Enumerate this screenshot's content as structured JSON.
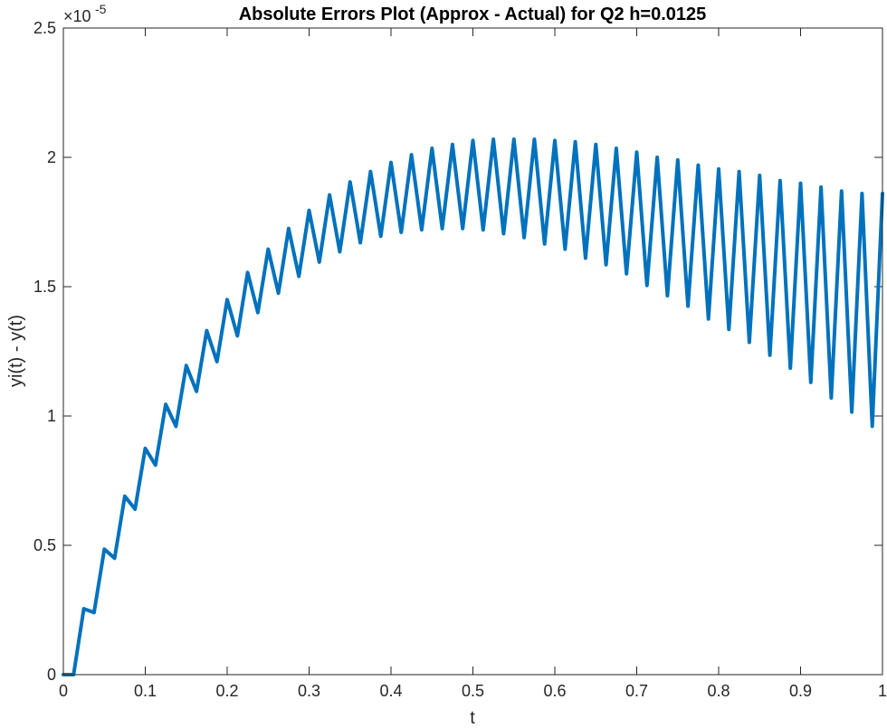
{
  "chart_data": {
    "type": "line",
    "title": "Absolute Errors Plot (Approx - Actual) for Q2 h=0.0125",
    "xlabel": "t",
    "ylabel": "yi(t) - y(t)",
    "xlim": [
      0,
      1
    ],
    "ylim": [
      0,
      2.5e-05
    ],
    "y_exponent_label": "×10",
    "y_exponent_power": "-5",
    "xticks": [
      0,
      0.1,
      0.2,
      0.3,
      0.4,
      0.5,
      0.6,
      0.7,
      0.8,
      0.9,
      1
    ],
    "xtick_labels": [
      "0",
      "0.1",
      "0.2",
      "0.3",
      "0.4",
      "0.5",
      "0.6",
      "0.7",
      "0.8",
      "0.9",
      "1"
    ],
    "yticks": [
      0,
      5e-06,
      1e-05,
      1.5e-05,
      2e-05,
      2.5e-05
    ],
    "ytick_labels": [
      "0",
      "0.5",
      "1",
      "1.5",
      "2",
      "2.5"
    ],
    "grid": false,
    "line_color": "#0072BD",
    "series": [
      {
        "x": [
          0,
          0.0125,
          0.025,
          0.0375,
          0.05,
          0.0625,
          0.075,
          0.0875,
          0.1,
          0.1125,
          0.125,
          0.1375,
          0.15,
          0.1625,
          0.175,
          0.1875,
          0.2,
          0.2125,
          0.225,
          0.2375,
          0.25,
          0.2625,
          0.275,
          0.2875,
          0.3,
          0.3125,
          0.325,
          0.3375,
          0.35,
          0.3625,
          0.375,
          0.3875,
          0.4,
          0.4125,
          0.425,
          0.4375,
          0.45,
          0.4625,
          0.475,
          0.4875,
          0.5,
          0.5125,
          0.525,
          0.5375,
          0.55,
          0.5625,
          0.575,
          0.5875,
          0.6,
          0.6125,
          0.625,
          0.6375,
          0.65,
          0.6625,
          0.675,
          0.6875,
          0.7,
          0.7125,
          0.725,
          0.7375,
          0.75,
          0.7625,
          0.775,
          0.7875,
          0.8,
          0.8125,
          0.825,
          0.8375,
          0.85,
          0.8625,
          0.875,
          0.8875,
          0.9,
          0.9125,
          0.925,
          0.9375,
          0.95,
          0.9625,
          0.975,
          0.9875,
          1
        ],
        "values": [
          0,
          0,
          2.55e-06,
          2.4e-06,
          4.85e-06,
          4.5e-06,
          6.9e-06,
          6.4e-06,
          8.75e-06,
          8.1e-06,
          1.045e-05,
          9.6e-06,
          1.195e-05,
          1.095e-05,
          1.33e-05,
          1.21e-05,
          1.45e-05,
          1.31e-05,
          1.555e-05,
          1.4e-05,
          1.645e-05,
          1.475e-05,
          1.725e-05,
          1.54e-05,
          1.795e-05,
          1.595e-05,
          1.855e-05,
          1.635e-05,
          1.905e-05,
          1.67e-05,
          1.945e-05,
          1.695e-05,
          1.98e-05,
          1.71e-05,
          2.01e-05,
          1.72e-05,
          2.035e-05,
          1.725e-05,
          2.05e-05,
          1.725e-05,
          2.065e-05,
          1.72e-05,
          2.07e-05,
          1.705e-05,
          2.07e-05,
          1.69e-05,
          2.07e-05,
          1.665e-05,
          2.065e-05,
          1.645e-05,
          2.06e-05,
          1.61e-05,
          2.05e-05,
          1.585e-05,
          2.035e-05,
          1.55e-05,
          2.02e-05,
          1.505e-05,
          2e-05,
          1.465e-05,
          1.99e-05,
          1.425e-05,
          1.97e-05,
          1.375e-05,
          1.955e-05,
          1.335e-05,
          1.945e-05,
          1.285e-05,
          1.93e-05,
          1.235e-05,
          1.91e-05,
          1.185e-05,
          1.9e-05,
          1.13e-05,
          1.885e-05,
          1.07e-05,
          1.87e-05,
          1.015e-05,
          1.86e-05,
          9.6e-06,
          1.86e-05
        ]
      }
    ]
  }
}
